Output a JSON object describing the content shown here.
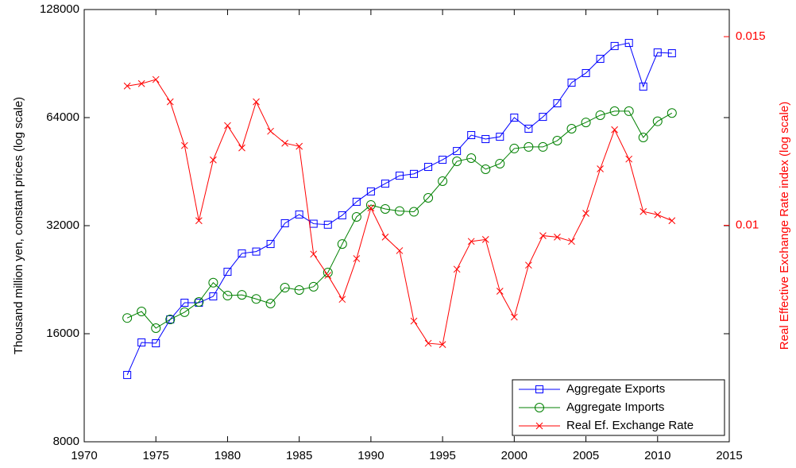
{
  "chart_data": {
    "type": "line",
    "x": [
      1973,
      1974,
      1975,
      1976,
      1977,
      1978,
      1979,
      1980,
      1981,
      1982,
      1983,
      1984,
      1985,
      1986,
      1987,
      1988,
      1989,
      1990,
      1991,
      1992,
      1993,
      1994,
      1995,
      1996,
      1997,
      1998,
      1999,
      2000,
      2001,
      2002,
      2003,
      2004,
      2005,
      2006,
      2007,
      2008,
      2009,
      2010,
      2011
    ],
    "xlim": [
      1970,
      2015
    ],
    "xticks": [
      1970,
      1975,
      1980,
      1985,
      1990,
      1995,
      2000,
      2005,
      2010,
      2015
    ],
    "ylabel": "Thousand million yen, constant prices (log scale)",
    "y2label": "Real Effective Exchange Rate index (log scale)",
    "ylim": [
      8000,
      128000
    ],
    "yticks": [
      8000,
      16000,
      32000,
      64000,
      128000
    ],
    "ylog": true,
    "y2lim": [
      0.00628,
      0.0159
    ],
    "y2ticks": [
      0.01,
      0.015
    ],
    "y2log": true,
    "legend": "lower right",
    "series": [
      {
        "name": "Aggregate Exports",
        "color": "#0000ff",
        "marker": "square",
        "values": [
          12280,
          15130,
          15050,
          17540,
          19520,
          19520,
          20330,
          23800,
          26780,
          27100,
          28450,
          32500,
          34380,
          32400,
          32200,
          34200,
          37300,
          39850,
          41900,
          44100,
          44600,
          46650,
          48840,
          51640,
          57200,
          55760,
          56600,
          64000,
          59600,
          64300,
          70150,
          80100,
          85150,
          93300,
          101300,
          103300,
          78100,
          97200,
          96700
        ]
      },
      {
        "name": "Aggregate Imports",
        "color": "#008000",
        "marker": "circle",
        "values": [
          17700,
          18450,
          16580,
          17540,
          18370,
          19620,
          22200,
          20430,
          20530,
          20000,
          19420,
          21500,
          21180,
          21630,
          23690,
          28450,
          33850,
          36540,
          35620,
          35150,
          34980,
          38250,
          42580,
          48350,
          49350,
          45960,
          47630,
          52480,
          53020,
          53020,
          55200,
          59600,
          62050,
          65000,
          66690,
          66690,
          56340,
          62500,
          65900
        ]
      },
      {
        "name": "Real Ef. Exchange Rate",
        "color": "#ff0000",
        "marker": "x",
        "axis": "y2",
        "values": [
          0.01349,
          0.01356,
          0.01368,
          0.01304,
          0.01187,
          0.0101,
          0.01151,
          0.01239,
          0.01181,
          0.01304,
          0.01224,
          0.01193,
          0.01185,
          0.0094,
          0.00898,
          0.00853,
          0.00931,
          0.01038,
          0.00975,
          0.00947,
          0.00814,
          0.00776,
          0.00774,
          0.0091,
          0.00966,
          0.0097,
          0.00868,
          0.00821,
          0.00918,
          0.00978,
          0.00975,
          0.00966,
          0.01026,
          0.01129,
          0.01228,
          0.01153,
          0.0103,
          0.01023,
          0.0101
        ]
      }
    ]
  }
}
